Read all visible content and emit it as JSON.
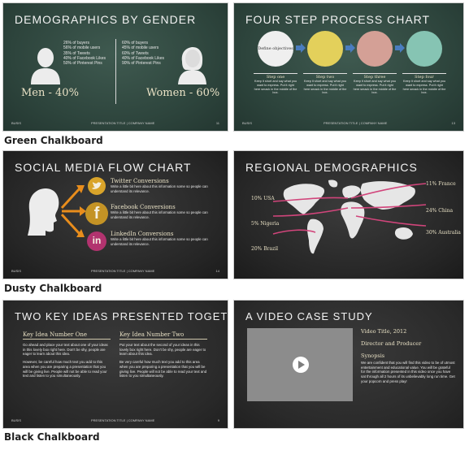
{
  "slides": {
    "s1": {
      "title": "DEMOGRAPHICS BY GENDER",
      "men_stats": [
        "26% of buyers",
        "56% of mobile users",
        "35% of Tweets",
        "40% of Facebook Likes",
        "50% of Pinterest Pins"
      ],
      "women_stats": [
        "60% of buyers",
        "45% of mobile users",
        "60% of Tweets",
        "40% of Facebook Likes",
        "90% of Pinterest Pins"
      ],
      "men_label": "Men - 40%",
      "women_label": "Women - 60%",
      "footer_left": "BUSIS",
      "footer_center": "PRESENTATION TITLE | COMPANY NAME",
      "footer_right": "11"
    },
    "s2": {
      "title": "FOUR STEP PROCESS CHART",
      "circles": [
        "Define objectives",
        "",
        "",
        ""
      ],
      "steps": [
        "Step one",
        "Step two",
        "Step three",
        "Step four"
      ],
      "step_text": "Keep it short and say what you want to express. Put it right here smack in the middle of the box.",
      "footer_left": "BUSIS",
      "footer_center": "PRESENTATION TITLE | COMPANY NAME",
      "footer_right": "13"
    },
    "s3": {
      "title": "SOCIAL MEDIA FLOW CHART",
      "items": [
        {
          "heading": "Twitter Conversions",
          "text": "Write a little bit here about this information some so people can understand its relevance."
        },
        {
          "heading": "Facebook Conversions",
          "text": "Write a little bit here about this information some so people can understand its relevance."
        },
        {
          "heading": "LinkedIn Conversions",
          "text": "Write a little bit here about this information some so people can understand its relevance."
        }
      ],
      "logos": [
        "f",
        "in"
      ],
      "footer_left": "BUSIS",
      "footer_center": "PRESENTATION TITLE | COMPANY NAME",
      "footer_right": "14"
    },
    "s4": {
      "title": "REGIONAL DEMOGRAPHICS",
      "labels": [
        "10% USA",
        "5% Nigeria",
        "20% Brazil",
        "11% France",
        "24% China",
        "30% Australia"
      ]
    },
    "s5": {
      "title": "TWO KEY IDEAS PRESENTED TOGETHER",
      "col1": {
        "heading": "Key Idea Number One",
        "p1": "Go ahead and place your text about one of your ideas in this lovely box right here. Don't be shy, people are eager to learn about this idea.",
        "p2": "However, be careful how much text you add to this area when you are preparing a presentation that you will be giving live. People will not be able to read your text and listen to you simultaneously."
      },
      "col2": {
        "heading": "Key Idea Number Two",
        "p1": "Put your text about the second of your ideas in this lovely box right here. Don't be shy, people are eager to learn about this idea.",
        "p2": "Be very careful how much text you add to this area when you are preparing a presentation that you will be giving live. People will not be able to read your text and listen to you simultaneously."
      },
      "footer_left": "BUSIS",
      "footer_center": "PRESENTATION TITLE | COMPANY NAME",
      "footer_right": "9"
    },
    "s6": {
      "title": "A VIDEO CASE STUDY",
      "video_title": "Video Title, 2012",
      "director": "Director and Producer",
      "synopsis_heading": "Synopsis",
      "synopsis": "We are confident that you will find this video to be of utmost entertainment and educational value. You will be grateful for the information presented in this video once you have sat through all 2 hours of its unbelievably long run time. Get your popcorn and press play!"
    }
  },
  "captions": {
    "green": "Green Chalkboard",
    "dusty": "Dusty Chalkboard",
    "black": "Black Chalkboard"
  },
  "colors": {
    "green_bg": "#2f473f",
    "dusty_bg": "#2a2a2a",
    "black_bg": "#2b2b2b",
    "chalk_white": "#f2f2f2",
    "chalk_cream": "#e9e1c5",
    "chalk_yellow": "#e2cf55",
    "chalk_pink": "#d6a095",
    "chalk_teal": "#84c2b2",
    "arrow_blue": "#2b74b8",
    "arrow_orange": "#e88d1c",
    "twitter_yellow": "#d9a42a",
    "facebook_gold": "#c49325",
    "linkedin_pink": "#b2336f",
    "route_pink": "#d1457b"
  },
  "icons": [
    "person-silhouette-icon",
    "arrow-icon",
    "twitter-bird-icon",
    "facebook-logo-icon",
    "linkedin-logo-icon",
    "world-map-icon",
    "play-icon"
  ]
}
